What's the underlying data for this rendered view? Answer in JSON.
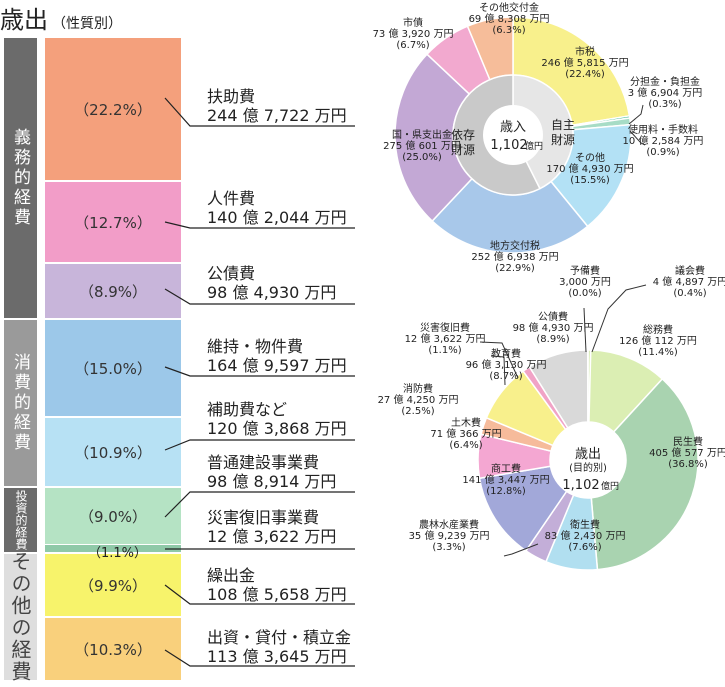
{
  "title": "歳出",
  "subtitle": "（性質別）",
  "categories": [
    {
      "label": "義務的経費",
      "color": "#6b6b6b",
      "style": "big"
    },
    {
      "label": "消費的経費",
      "color": "#9a9a9a",
      "style": "big"
    },
    {
      "label": "投資的経費",
      "color": "#6b6b6b",
      "style": "small"
    },
    {
      "label": "その他の経費",
      "color": "#dedede",
      "style": "dark"
    }
  ],
  "items": [
    {
      "name": "扶助費",
      "amount": "244 億 7,722 万円",
      "pct": "（22.2%）",
      "color": "#f4a07c"
    },
    {
      "name": "人件費",
      "amount": "140 億 2,044 万円",
      "pct": "（12.7%）",
      "color": "#f29dc8"
    },
    {
      "name": "公債費",
      "amount": "98 億 4,930 万円",
      "pct": "（8.9%）",
      "color": "#c8b5da"
    },
    {
      "name": "維持・物件費",
      "amount": "164 億 9,597 万円",
      "pct": "（15.0%）",
      "color": "#9cc8e9"
    },
    {
      "name": "補助費など",
      "amount": "120 億 3,868 万円",
      "pct": "（10.9%）",
      "color": "#b7e1f4"
    },
    {
      "name": "普通建設事業費",
      "amount": "98 億 8,914 万円",
      "pct": "（9.0%）",
      "color": "#b5e3c4"
    },
    {
      "name": "災害復旧事業費",
      "amount": "12 億 3,622 万円",
      "pct": "（1.1%）",
      "color": "#8fc9a8"
    },
    {
      "name": "繰出金",
      "amount": "108 億 5,658 万円",
      "pct": "（9.9%）",
      "color": "#f7f36b"
    },
    {
      "name": "出資・貸付・積立金",
      "amount": "113 億 3,645 万円",
      "pct": "（10.3%）",
      "color": "#f9d07c"
    }
  ],
  "chart_data": [
    {
      "type": "pie",
      "title": "歳入",
      "center_text": [
        "歳入",
        "1,102",
        "億円"
      ],
      "inner_groups": [
        {
          "name": "依存財源",
          "value": 57.4,
          "color": "#c9c9c9"
        },
        {
          "name": "自主財源",
          "value": 42.6,
          "color": "#e6e6e6"
        }
      ],
      "slices": [
        {
          "name": "市税",
          "amount": "246 億 5,815 万円",
          "pct": "(22.4%)",
          "value": 22.4,
          "color": "#f8f08c"
        },
        {
          "name": "分担金・負担金",
          "amount": "3 億 6,904 万円",
          "pct": "(0.3%)",
          "value": 0.3,
          "color": "#4fbf9b"
        },
        {
          "name": "使用料・手数料",
          "amount": "10 億 2,584 万円",
          "pct": "(0.9%)",
          "value": 0.9,
          "color": "#a7dcc6"
        },
        {
          "name": "その他",
          "amount": "170 億 4,930 万円",
          "pct": "(15.5%)",
          "value": 15.5,
          "color": "#b3e1f5"
        },
        {
          "name": "地方交付税",
          "amount": "252 億 6,938 万円",
          "pct": "(22.9%)",
          "value": 22.9,
          "color": "#a8c8ea"
        },
        {
          "name": "国・県支出金",
          "amount": "275 億 601 万円",
          "pct": "(25.0%)",
          "value": 25.0,
          "color": "#c3a8d5"
        },
        {
          "name": "市債",
          "amount": "73 億 3,920 万円",
          "pct": "(6.7%)",
          "value": 6.7,
          "color": "#f2a9cf"
        },
        {
          "name": "その他交付金",
          "amount": "69 億 8,308 万円",
          "pct": "(6.3%)",
          "value": 6.3,
          "color": "#f6bd9a"
        }
      ]
    },
    {
      "type": "pie",
      "title": "歳出",
      "center_text": [
        "歳出",
        "(目的別)",
        "1,102",
        "億円"
      ],
      "slices": [
        {
          "name": "議会費",
          "amount": "4 億 4,897 万円",
          "pct": "(0.4%)",
          "value": 0.4,
          "color": "#d8ecb6"
        },
        {
          "name": "総務費",
          "amount": "126 億 112 万円",
          "pct": "(11.4%)",
          "value": 11.4,
          "color": "#dbeeb3"
        },
        {
          "name": "民生費",
          "amount": "405 億 577 万円",
          "pct": "(36.8%)",
          "value": 36.8,
          "color": "#a9d3b0"
        },
        {
          "name": "衛生費",
          "amount": "83 億 2,430 万円",
          "pct": "(7.6%)",
          "value": 7.6,
          "color": "#b1dff0"
        },
        {
          "name": "農林水産業費",
          "amount": "35 億 9,239 万円",
          "pct": "(3.3%)",
          "value": 3.3,
          "color": "#c3aed8"
        },
        {
          "name": "商工費",
          "amount": "141 億 3,447 万円",
          "pct": "(12.8%)",
          "value": 12.8,
          "color": "#a2a8d9"
        },
        {
          "name": "土木費",
          "amount": "71 億 366 万円",
          "pct": "(6.4%)",
          "value": 6.4,
          "color": "#f4a7d2"
        },
        {
          "name": "消防費",
          "amount": "27 億 4,250 万円",
          "pct": "(2.5%)",
          "value": 2.5,
          "color": "#f6bb9b"
        },
        {
          "name": "教育費",
          "amount": "96 億 3,130 万円",
          "pct": "(8.7%)",
          "value": 8.7,
          "color": "#f8f08c"
        },
        {
          "name": "災害復旧費",
          "amount": "12 億 3,622 万円",
          "pct": "(1.1%)",
          "value": 1.1,
          "color": "#f1a3c6"
        },
        {
          "name": "公債費",
          "amount": "98 億 4,930 万円",
          "pct": "(8.9%)",
          "value": 8.9,
          "color": "#d9d9d9"
        },
        {
          "name": "予備費",
          "amount": "3,000 万円",
          "pct": "(0.0%)",
          "value": 0.03,
          "color": "#bfbfbf"
        }
      ]
    }
  ]
}
